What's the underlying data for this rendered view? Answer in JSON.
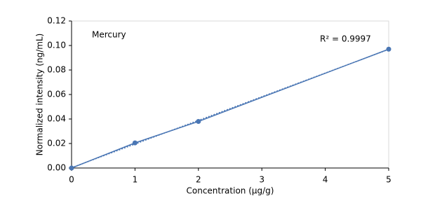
{
  "chart_data": {
    "type": "scatter",
    "x_label": "Concentration (μg/g)",
    "y_label": "Normalized intensity (ng/mL)",
    "annotations": [
      "R² = 0.9997"
    ],
    "series": [
      {
        "name": "Mercury",
        "color": "#4a76b4",
        "x": [
          0,
          1,
          2,
          5
        ],
        "values": [
          0,
          0.0205,
          0.038,
          0.097
        ]
      }
    ],
    "trendline": true,
    "xlim": [
      0,
      5
    ],
    "xticks": [
      0,
      1,
      2,
      3,
      4,
      5
    ],
    "ylim": [
      0,
      0.12
    ],
    "yticks": [
      {
        "value": 0,
        "label": "0.00"
      },
      {
        "value": 0.02,
        "label": "0.02"
      },
      {
        "value": 0.04,
        "label": "0.04"
      },
      {
        "value": 0.06,
        "label": "0.06"
      },
      {
        "value": 0.08,
        "label": "0.08"
      },
      {
        "value": 0.1,
        "label": "0.10"
      },
      {
        "value": 0.12,
        "label": "0.12"
      }
    ]
  }
}
